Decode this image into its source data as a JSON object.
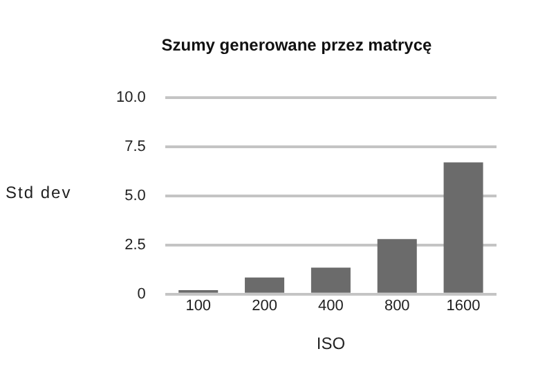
{
  "chart_data": {
    "type": "bar",
    "title": "Szumy generowane przez matrycę",
    "xlabel": "ISO",
    "ylabel": "Std dev",
    "categories": [
      "100",
      "200",
      "400",
      "800",
      "1600"
    ],
    "values": [
      0.2,
      0.85,
      1.35,
      2.8,
      6.7
    ],
    "color": "#6b6b6b",
    "ylim": [
      0,
      10
    ],
    "yticks": [
      {
        "value": 0,
        "label": "0"
      },
      {
        "value": 2.5,
        "label": "2.5"
      },
      {
        "value": 5,
        "label": "5.0"
      },
      {
        "value": 7.5,
        "label": "7.5"
      },
      {
        "value": 10,
        "label": "10.0"
      }
    ],
    "grid": "y",
    "legend": false
  }
}
